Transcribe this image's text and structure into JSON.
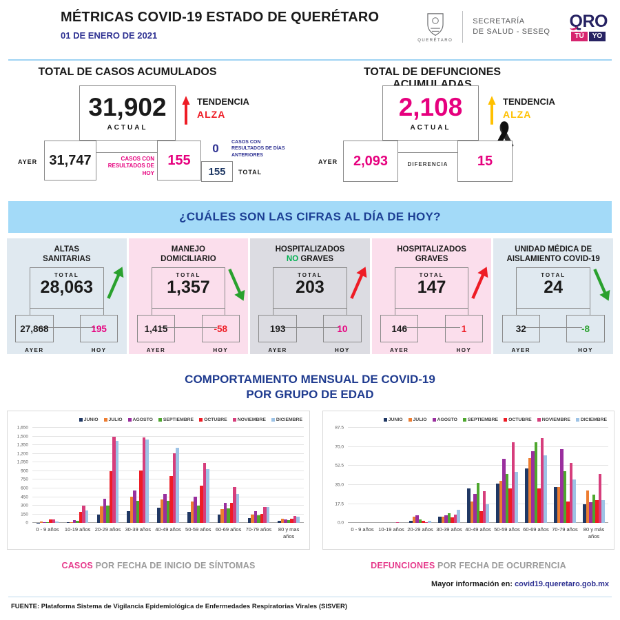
{
  "header": {
    "title": "MÉTRICAS COVID-19 ESTADO DE QUERÉTARO",
    "date": "01 DE ENERO DE 2021",
    "coat_label": "QUERÉTARO",
    "secretaria_line1": "SECRETARÍA",
    "secretaria_line2": "DE SALUD - SESEQ",
    "logo_qro": "QRO",
    "logo_tu": "TÚ",
    "logo_yo": "YO"
  },
  "colors": {
    "accent_pink": "#e6007e",
    "navy": "#262262",
    "link_blue": "#2e3192",
    "banner_bg": "#a3daf8",
    "alza_casos": "#ee1c25",
    "alza_defunciones": "#ffc000",
    "green": "#2aa12e",
    "red": "#ee1c25"
  },
  "totals": {
    "casos": {
      "title": "TOTAL DE CASOS ACUMULADOS",
      "actual": "31,902",
      "actual_label": "ACTUAL",
      "ayer": "31,747",
      "ayer_label": "AYER",
      "hoy": "155",
      "hoy_label": "CASOS CON RESULTADOS DE HOY",
      "anteriores": "0",
      "anteriores_label": "CASOS CON RESULTADOS DE DÍAS ANTERIORES",
      "total": "155",
      "total_label": "TOTAL",
      "tendencia_label": "TENDENCIA",
      "tendencia_value": "ALZA"
    },
    "defunciones": {
      "title": "TOTAL DE DEFUNCIONES ACUMULADAS",
      "actual": "2,108",
      "actual_label": "ACTUAL",
      "ayer": "2,093",
      "ayer_label": "AYER",
      "diferencia": "15",
      "diferencia_label": "DIFERENCIA",
      "tendencia_label": "TENDENCIA",
      "tendencia_value": "ALZA"
    }
  },
  "banner": {
    "text": "¿CUÁLES SON LAS CIFRAS AL DÍA DE HOY?"
  },
  "cards": [
    {
      "title_lines": [
        [
          {
            "t": "ALTAS"
          }
        ],
        [
          {
            "t": "SANITARIAS"
          }
        ]
      ],
      "bg": "#e0e9f0",
      "total_label": "TOTAL",
      "total": "28,063",
      "ayer": "27,868",
      "ayer_label": "AYER",
      "hoy": "195",
      "hoy_color": "#e6007e",
      "hoy_label": "HOY",
      "arrow": {
        "direction": "up",
        "color": "#2aa12e"
      }
    },
    {
      "title_lines": [
        [
          {
            "t": "MANEJO"
          }
        ],
        [
          {
            "t": "DOMICILIARIO"
          }
        ]
      ],
      "bg": "#fbdeec",
      "total_label": "TOTAL",
      "total": "1,357",
      "ayer": "1,415",
      "ayer_label": "AYER",
      "hoy": "-58",
      "hoy_color": "#ee1c25",
      "hoy_label": "HOY",
      "arrow": {
        "direction": "down",
        "color": "#2aa12e"
      }
    },
    {
      "title_lines": [
        [
          {
            "t": "HOSPITALIZADOS"
          }
        ],
        [
          {
            "t": "NO",
            "c": "#00b050"
          },
          {
            "t": " GRAVES"
          }
        ]
      ],
      "bg": "#dcdce2",
      "total_label": "TOTAL",
      "total": "203",
      "ayer": "193",
      "ayer_label": "AYER",
      "hoy": "10",
      "hoy_color": "#e6007e",
      "hoy_label": "HOY",
      "arrow": {
        "direction": "up",
        "color": "#ee1c25"
      }
    },
    {
      "title_lines": [
        [
          {
            "t": "HOSPITALIZADOS"
          }
        ],
        [
          {
            "t": "GRAVES"
          }
        ]
      ],
      "bg": "#fbdeec",
      "total_label": "TOTAL",
      "total": "147",
      "ayer": "146",
      "ayer_label": "AYER",
      "hoy": "1",
      "hoy_color": "#ee1c25",
      "hoy_label": "HOY",
      "arrow": {
        "direction": "up",
        "color": "#ee1c25"
      }
    },
    {
      "title_lines": [
        [
          {
            "t": "UNIDAD MÉDICA DE"
          }
        ],
        [
          {
            "t": "AISLAMIENTO COVID-19"
          }
        ]
      ],
      "bg": "#e0e9f0",
      "total_label": "TOTAL",
      "total": "24",
      "ayer": "32",
      "ayer_label": "AYER",
      "hoy": "-8",
      "hoy_color": "#2aa12e",
      "hoy_label": "HOY",
      "arrow": {
        "direction": "down",
        "color": "#2aa12e"
      }
    }
  ],
  "charts_section": {
    "title_line1": "COMPORTAMIENTO MENSUAL DE COVID-19",
    "title_line2": "POR GRUPO DE EDAD",
    "more_info_label": "Mayor información en:",
    "more_info_link": "covid19.queretaro.gob.mx"
  },
  "chart_data": [
    {
      "type": "bar",
      "caption_highlight": "CASOS",
      "caption_rest": " POR FECHA DE INICIO DE SÍNTOMAS",
      "legend_position": "top-right",
      "grid": true,
      "ylim": [
        0,
        1650
      ],
      "yticks": [
        0,
        150,
        300,
        450,
        600,
        750,
        900,
        1050,
        1200,
        1350,
        1500,
        1650
      ],
      "ytick_labels": [
        "0",
        "150",
        "300",
        "450",
        "600",
        "750",
        "900",
        "1,050",
        "1,200",
        "1,350",
        "1,500",
        "1,650"
      ],
      "categories": [
        "0 - 9 años",
        "10-19 años",
        "20-29 años",
        "30-39 años",
        "40-49 años",
        "50-59 años",
        "60-69 años",
        "70-79 años",
        "80 y mas años"
      ],
      "series": [
        {
          "name": "JUNIO",
          "color": "#203864",
          "values": [
            5,
            10,
            145,
            200,
            260,
            190,
            150,
            90,
            40
          ]
        },
        {
          "name": "JULIO",
          "color": "#ed7d31",
          "values": [
            25,
            20,
            290,
            460,
            410,
            375,
            245,
            140,
            70
          ]
        },
        {
          "name": "AGOSTO",
          "color": "#9a2f9e",
          "values": [
            10,
            55,
            415,
            565,
            505,
            460,
            350,
            200,
            60
          ]
        },
        {
          "name": "SEPTIEMBRE",
          "color": "#4ea72e",
          "values": [
            10,
            40,
            305,
            390,
            385,
            300,
            250,
            135,
            50
          ]
        },
        {
          "name": "OCTUBRE",
          "color": "#ee1c25",
          "values": [
            60,
            195,
            900,
            910,
            820,
            645,
            355,
            160,
            80
          ]
        },
        {
          "name": "NOVIEMBRE",
          "color": "#d63e7c",
          "values": [
            60,
            305,
            1500,
            1480,
            1215,
            1040,
            625,
            280,
            120
          ]
        },
        {
          "name": "DICIEMBRE",
          "color": "#9dc3e6",
          "values": [
            30,
            220,
            1430,
            1455,
            1310,
            930,
            505,
            280,
            110
          ]
        }
      ]
    },
    {
      "type": "bar",
      "caption_highlight": "DEFUNCIONES",
      "caption_rest": " POR FECHA DE OCURRENCIA",
      "legend_position": "top-right",
      "grid": true,
      "ylim": [
        0,
        87.5
      ],
      "yticks": [
        0,
        17.5,
        35.0,
        52.5,
        70.0,
        87.5
      ],
      "ytick_labels": [
        "0.0",
        "17.5",
        "35.0",
        "52.5",
        "70.0",
        "87.5"
      ],
      "categories": [
        "0 - 9 años",
        "10-19 años",
        "20-29 años",
        "30-39 años",
        "40-49 años",
        "50-59 años",
        "60-69 años",
        "70-79 años",
        "80 y más años"
      ],
      "series": [
        {
          "name": "JUNIO",
          "color": "#203864",
          "values": [
            0,
            0,
            2,
            6,
            32,
            36,
            50,
            33,
            17
          ]
        },
        {
          "name": "JULIO",
          "color": "#ed7d31",
          "values": [
            0,
            0,
            6,
            6,
            20,
            39,
            60,
            33,
            30
          ]
        },
        {
          "name": "AGOSTO",
          "color": "#9a2f9e",
          "values": [
            0,
            0,
            7,
            7,
            27,
            59,
            66,
            68,
            19
          ]
        },
        {
          "name": "SEPTIEMBRE",
          "color": "#4ea72e",
          "values": [
            0,
            0,
            3,
            9,
            37,
            45,
            74,
            48,
            26
          ]
        },
        {
          "name": "OCTUBRE",
          "color": "#ee1c25",
          "values": [
            0,
            0,
            2,
            5,
            11,
            32,
            32,
            20,
            21
          ]
        },
        {
          "name": "NOVIEMBRE",
          "color": "#d63e7c",
          "values": [
            0,
            1,
            1,
            8,
            29,
            74,
            78,
            55,
            45
          ]
        },
        {
          "name": "DICIEMBRE",
          "color": "#9dc3e6",
          "values": [
            0,
            0,
            2,
            12,
            17,
            47,
            62,
            40,
            21
          ]
        }
      ]
    }
  ],
  "footer": {
    "source": "FUENTE: Plataforma Sistema  de Vigilancia Epidemiológica de Enfermedades Respiratorias Virales (SISVER)"
  }
}
